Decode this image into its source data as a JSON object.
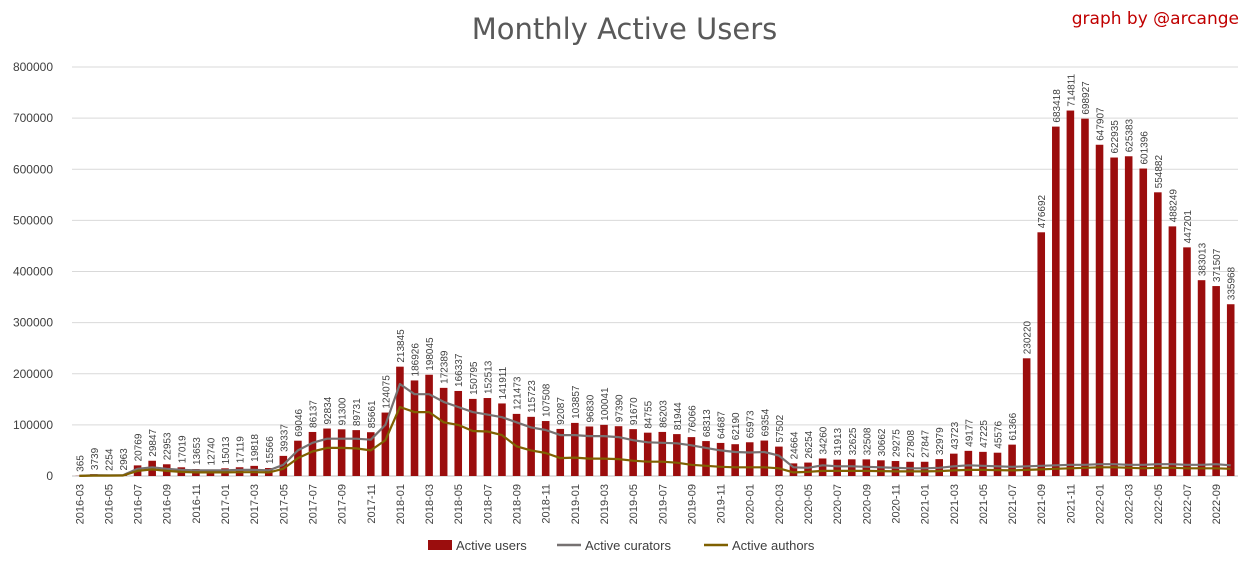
{
  "header": {
    "title": "Monthly Active Users",
    "credit": "graph by @arcange"
  },
  "colors": {
    "users": "#9b0d0d",
    "curators": "#767171",
    "authors": "#7f6000",
    "grid": "#d9d9d9",
    "credit": "#c00000"
  },
  "chart_data": {
    "type": "bar",
    "title": "Monthly Active Users",
    "ylim": [
      0,
      800000
    ],
    "yticks": [
      0,
      100000,
      200000,
      300000,
      400000,
      500000,
      600000,
      700000,
      800000
    ],
    "ytick_labels": [
      "0",
      "100000",
      "200000",
      "300000",
      "400000",
      "500000",
      "600000",
      "700000",
      "800000"
    ],
    "grid": true,
    "legend_position": "bottom",
    "categories": [
      "2016-03",
      "2016-04",
      "2016-05",
      "2016-06",
      "2016-07",
      "2016-08",
      "2016-09",
      "2016-10",
      "2016-11",
      "2016-12",
      "2017-01",
      "2017-02",
      "2017-03",
      "2017-04",
      "2017-05",
      "2017-06",
      "2017-07",
      "2017-08",
      "2017-09",
      "2017-10",
      "2017-11",
      "2017-12",
      "2018-01",
      "2018-02",
      "2018-03",
      "2018-04",
      "2018-05",
      "2018-06",
      "2018-07",
      "2018-08",
      "2018-09",
      "2018-10",
      "2018-11",
      "2018-12",
      "2019-01",
      "2019-02",
      "2019-03",
      "2019-04",
      "2019-05",
      "2019-06",
      "2019-07",
      "2019-08",
      "2019-09",
      "2019-10",
      "2019-11",
      "2019-12",
      "2020-01",
      "2020-02",
      "2020-03",
      "2020-04",
      "2020-05",
      "2020-06",
      "2020-07",
      "2020-08",
      "2020-09",
      "2020-10",
      "2020-11",
      "2020-12",
      "2021-01",
      "2021-02",
      "2021-03",
      "2021-04",
      "2021-05",
      "2021-06",
      "2021-07",
      "2021-08",
      "2021-09",
      "2021-10",
      "2021-11",
      "2021-12",
      "2022-01",
      "2022-02",
      "2022-03",
      "2022-04",
      "2022-05",
      "2022-06",
      "2022-07",
      "2022-08",
      "2022-09",
      "2022-10"
    ],
    "x_tick_labels": [
      "2016-03",
      "2016-05",
      "2016-07",
      "2016-09",
      "2016-11",
      "2017-01",
      "2017-03",
      "2017-05",
      "2017-07",
      "2017-09",
      "2017-11",
      "2018-01",
      "2018-03",
      "2018-05",
      "2018-07",
      "2018-09",
      "2018-11",
      "2019-01",
      "2019-03",
      "2019-05",
      "2019-07",
      "2019-09",
      "2019-11",
      "2020-01",
      "2020-03",
      "2020-05",
      "2020-07",
      "2020-09",
      "2020-11",
      "2021-01",
      "2021-03",
      "2021-05",
      "2021-07",
      "2021-09",
      "2021-11",
      "2022-01",
      "2022-03",
      "2022-05",
      "2022-07",
      "2022-09"
    ],
    "series": [
      {
        "name": "Active users",
        "kind": "bar",
        "values": [
          365,
          3739,
          2254,
          2963,
          20769,
          29847,
          22953,
          17019,
          13653,
          12740,
          15013,
          17119,
          19818,
          15566,
          39337,
          69046,
          86137,
          92834,
          91300,
          89731,
          85661,
          124075,
          213845,
          186926,
          198045,
          172389,
          166337,
          150795,
          152513,
          141911,
          121473,
          115723,
          107508,
          92087,
          103857,
          96830,
          100041,
          97390,
          91670,
          84755,
          86203,
          81944,
          76066,
          68313,
          64687,
          62190,
          65973,
          69354,
          57502,
          24664,
          26254,
          34260,
          31913,
          32625,
          32508,
          30662,
          29275,
          27808,
          27847,
          32979,
          43723,
          49177,
          47225,
          45576,
          61366,
          230220,
          476692,
          683418,
          714811,
          698927,
          647907,
          622935,
          625383,
          601396,
          554882,
          488249,
          447201,
          383013,
          371507,
          335968
        ]
      },
      {
        "name": "Active curators",
        "kind": "line",
        "values": [
          200,
          1500,
          1200,
          1500,
          14000,
          17000,
          14000,
          12000,
          11000,
          11000,
          11000,
          12000,
          12000,
          11000,
          22000,
          50000,
          65000,
          73000,
          73000,
          73000,
          71000,
          100000,
          180000,
          160000,
          160000,
          145000,
          135000,
          125000,
          120000,
          115000,
          105000,
          95000,
          90000,
          80000,
          80000,
          78000,
          78000,
          76000,
          70000,
          66000,
          65000,
          64000,
          60000,
          55000,
          50000,
          47000,
          46000,
          47000,
          40000,
          17000,
          16000,
          21000,
          19000,
          19000,
          18000,
          17000,
          16000,
          15000,
          15000,
          16000,
          19000,
          21000,
          20000,
          19000,
          18000,
          19000,
          20000,
          21000,
          22000,
          22000,
          23000,
          23000,
          22000,
          22000,
          23000,
          23000,
          22000,
          22000,
          23000,
          21000
        ]
      },
      {
        "name": "Active authors",
        "kind": "line",
        "values": [
          100,
          800,
          700,
          900,
          10000,
          13000,
          10000,
          8000,
          7000,
          7000,
          7000,
          7500,
          7500,
          7000,
          14000,
          35000,
          48000,
          55000,
          55000,
          54000,
          50000,
          70000,
          135000,
          125000,
          125000,
          105000,
          100000,
          88000,
          87000,
          80000,
          58000,
          50000,
          45000,
          35000,
          36000,
          34000,
          34000,
          33000,
          30000,
          28000,
          28000,
          26000,
          22000,
          20000,
          18000,
          17000,
          17000,
          17000,
          15000,
          7000,
          8000,
          10000,
          10000,
          10000,
          10000,
          9500,
          9000,
          9000,
          9000,
          9500,
          11000,
          12000,
          12000,
          11500,
          11000,
          12000,
          13000,
          14000,
          15000,
          16000,
          17000,
          17000,
          16000,
          15000,
          16000,
          16000,
          15000,
          15000,
          15000,
          14000
        ]
      }
    ]
  }
}
